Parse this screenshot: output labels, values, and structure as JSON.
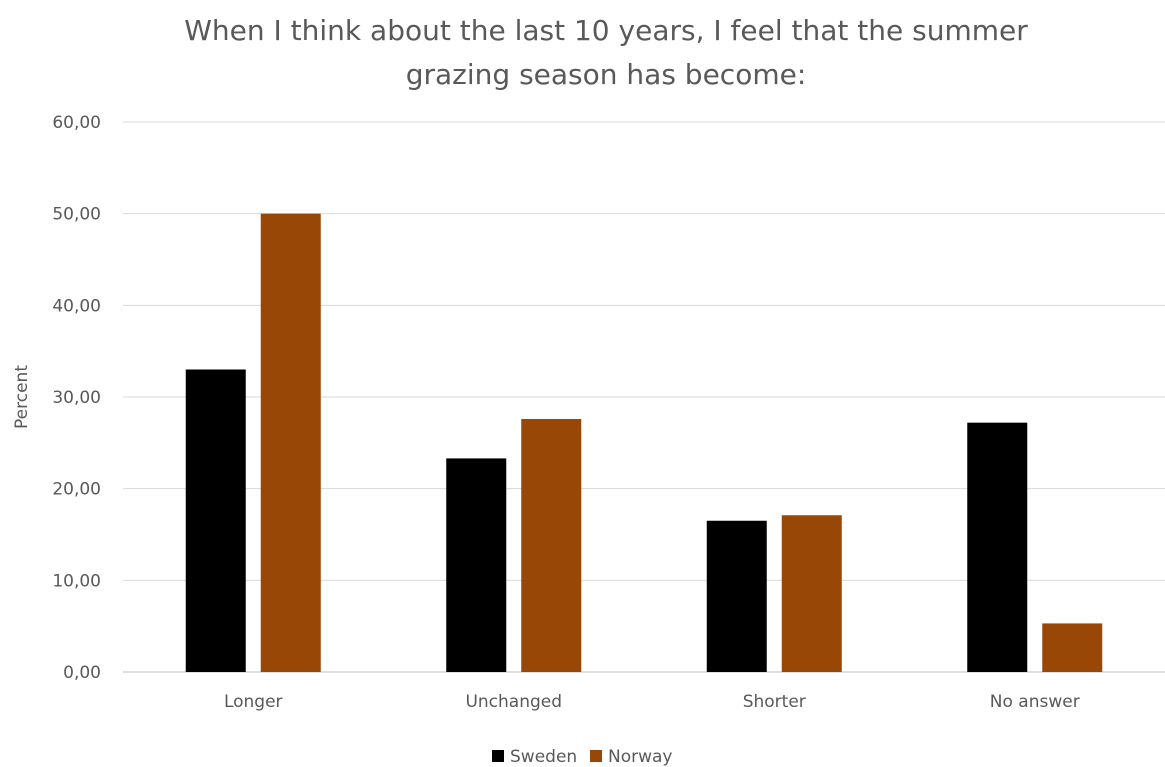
{
  "chart_data": {
    "type": "bar",
    "title_lines": [
      "When I think about the last 10 years, I feel that the summer",
      "grazing season has become:"
    ],
    "ylabel": "Percent",
    "xlabel": "",
    "categories": [
      "Longer",
      "Unchanged",
      "Shorter",
      "No answer"
    ],
    "ylim": [
      0,
      60
    ],
    "yticks": [
      "0,00",
      "10,00",
      "20,00",
      "30,00",
      "40,00",
      "50,00",
      "60,00"
    ],
    "grid": true,
    "legend_position": "bottom",
    "series": [
      {
        "name": "Sweden",
        "color": "#000000",
        "values": [
          33.0,
          23.3,
          16.5,
          27.2
        ]
      },
      {
        "name": "Norway",
        "color": "#994707",
        "values": [
          50.0,
          27.6,
          17.1,
          5.3
        ]
      }
    ]
  }
}
